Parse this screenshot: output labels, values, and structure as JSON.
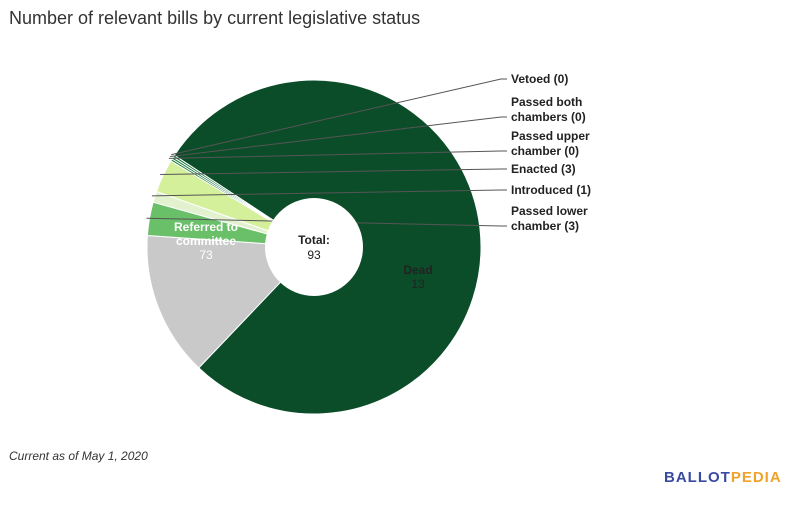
{
  "header": {
    "title": "Number of relevant bills by current legislative status"
  },
  "footer": {
    "note": "Current as of May 1, 2020",
    "brand_part1": "BALLOT",
    "brand_part2": "PEDIA"
  },
  "colors": {
    "brand_blue": "#3b4aa1",
    "brand_orange": "#f0a22a"
  },
  "chart_data": {
    "type": "pie",
    "donut": true,
    "title": "Number of relevant bills by current legislative status",
    "center_label": {
      "line1": "Total:",
      "line2": "93"
    },
    "total": 93,
    "slices": [
      {
        "label_lines": [
          "Referred to",
          "committee"
        ],
        "value_text": "73",
        "value": 73,
        "color": "#0c4d29"
      },
      {
        "label_lines": [
          "Dead"
        ],
        "value_text": "13",
        "value": 13,
        "color": "#c9c9c9"
      },
      {
        "label_lines": [
          "Passed lower",
          "chamber (3)"
        ],
        "value": 3,
        "color": "#6abf69"
      },
      {
        "label_lines": [
          "Introduced (1)"
        ],
        "value": 1,
        "color": "#e2f2cf"
      },
      {
        "label_lines": [
          "Enacted (3)"
        ],
        "value": 3,
        "color": "#d4f09b"
      },
      {
        "label_lines": [
          "Passed upper",
          "chamber (0)"
        ],
        "value": 0,
        "color": "#1b7a3e"
      },
      {
        "label_lines": [
          "Passed both",
          "chambers (0)"
        ],
        "value": 0,
        "color": "#1b7a3e"
      },
      {
        "label_lines": [
          "Vetoed (0)"
        ],
        "value": 0,
        "color": "#1b7a3e"
      }
    ]
  }
}
